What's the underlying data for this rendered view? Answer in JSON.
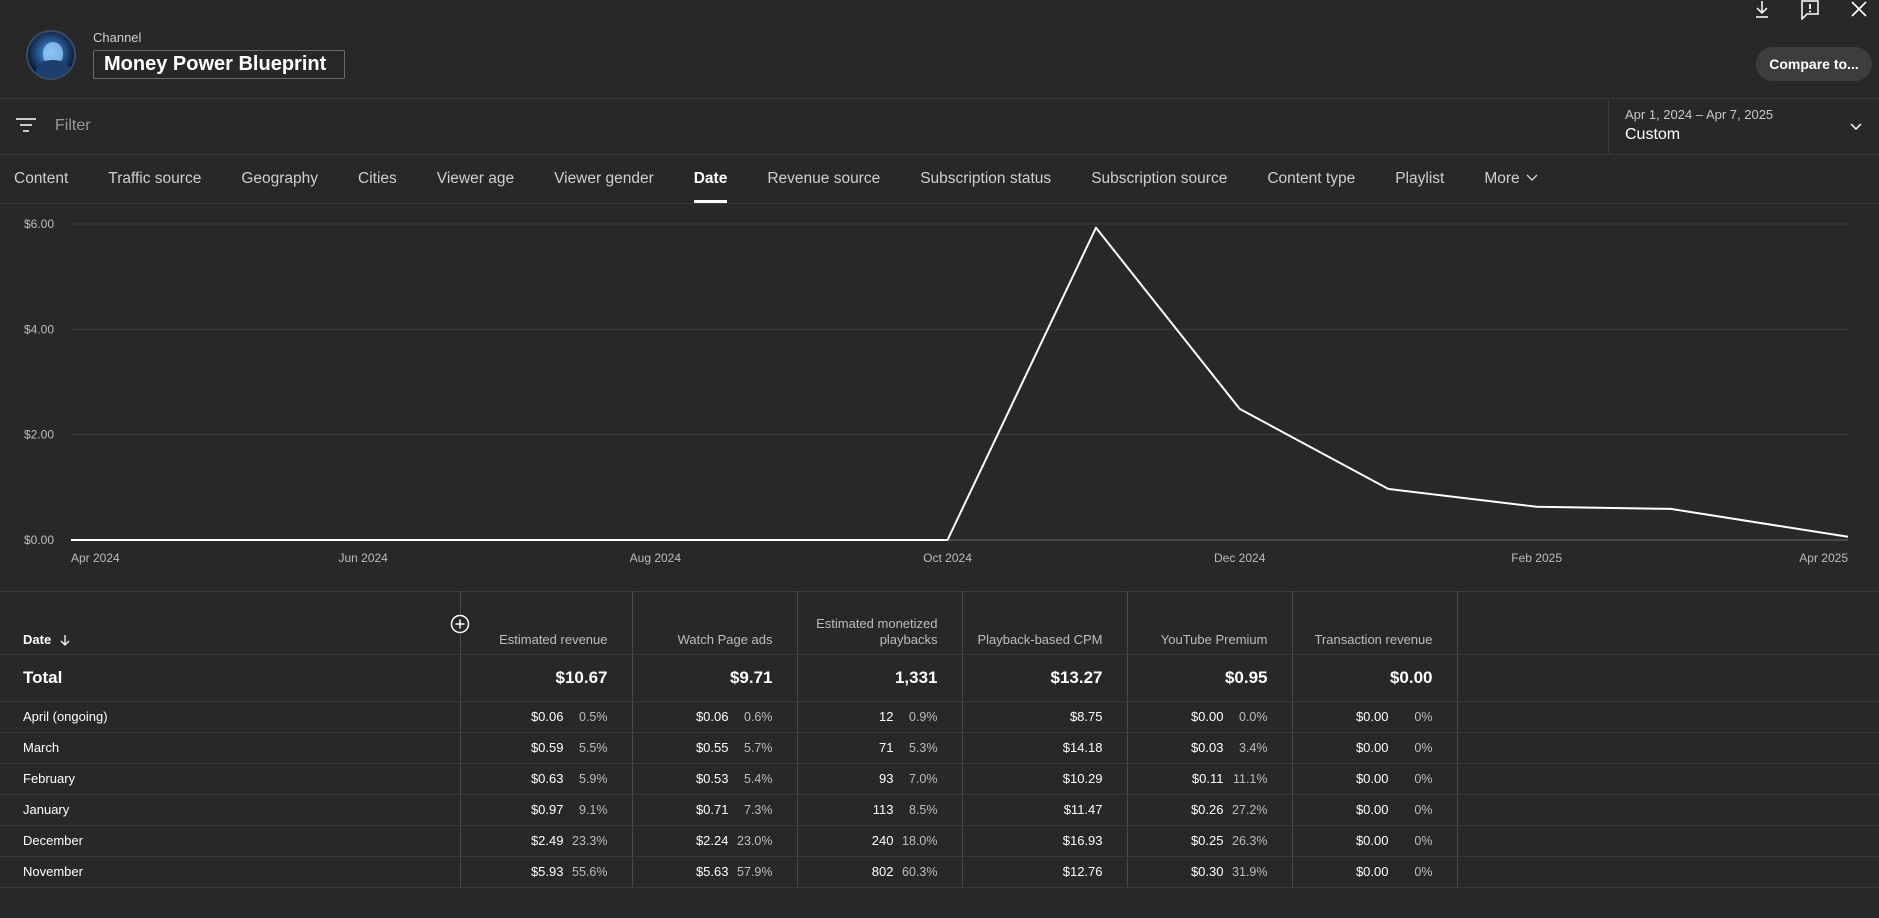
{
  "header": {
    "channel_label": "Channel",
    "channel_name": "Money Power Blueprint",
    "compare_label": "Compare to..."
  },
  "filter": {
    "placeholder": "Filter",
    "date_range": "Apr 1, 2024 – Apr 7, 2025",
    "date_preset": "Custom"
  },
  "tabs": [
    {
      "label": "Content"
    },
    {
      "label": "Traffic source"
    },
    {
      "label": "Geography"
    },
    {
      "label": "Cities"
    },
    {
      "label": "Viewer age"
    },
    {
      "label": "Viewer gender"
    },
    {
      "label": "Date",
      "active": true
    },
    {
      "label": "Revenue source"
    },
    {
      "label": "Subscription status"
    },
    {
      "label": "Subscription source"
    },
    {
      "label": "Content type"
    },
    {
      "label": "Playlist"
    },
    {
      "label": "More"
    }
  ],
  "chart_data": {
    "type": "line",
    "y_ticks": [
      "$6.00",
      "$4.00",
      "$2.00",
      "$0.00"
    ],
    "ylim": [
      0,
      6
    ],
    "x_ticks": [
      {
        "label": "Apr 2024",
        "date": "2024-04-01"
      },
      {
        "label": "Jun 2024",
        "date": "2024-06-01"
      },
      {
        "label": "Aug 2024",
        "date": "2024-08-01"
      },
      {
        "label": "Oct 2024",
        "date": "2024-10-01"
      },
      {
        "label": "Dec 2024",
        "date": "2024-12-01"
      },
      {
        "label": "Feb 2025",
        "date": "2025-02-01"
      },
      {
        "label": "Apr 2025",
        "date": "2025-04-01"
      }
    ],
    "xlim": [
      "2024-04-01",
      "2025-04-07"
    ],
    "series": [
      {
        "color": "#ffffff",
        "points": [
          {
            "x": "2024-04-01",
            "y": 0
          },
          {
            "x": "2024-05-01",
            "y": 0
          },
          {
            "x": "2024-06-01",
            "y": 0
          },
          {
            "x": "2024-07-01",
            "y": 0
          },
          {
            "x": "2024-08-01",
            "y": 0
          },
          {
            "x": "2024-09-01",
            "y": 0
          },
          {
            "x": "2024-10-01",
            "y": 0
          },
          {
            "x": "2024-11-01",
            "y": 5.93
          },
          {
            "x": "2024-12-01",
            "y": 2.49
          },
          {
            "x": "2025-01-01",
            "y": 0.97
          },
          {
            "x": "2025-02-01",
            "y": 0.63
          },
          {
            "x": "2025-03-01",
            "y": 0.59
          },
          {
            "x": "2025-04-07",
            "y": 0.06
          }
        ]
      }
    ]
  },
  "table": {
    "columns": [
      {
        "label": "Date"
      },
      {
        "label": "Estimated revenue"
      },
      {
        "label": "Watch Page ads"
      },
      {
        "label": "Estimated monetized playbacks"
      },
      {
        "label": "Playback-based CPM"
      },
      {
        "label": "YouTube Premium"
      },
      {
        "label": "Transaction revenue"
      }
    ],
    "total": {
      "label": "Total",
      "values": [
        "$10.67",
        "$9.71",
        "1,331",
        "$13.27",
        "$0.95",
        "$0.00"
      ]
    },
    "rows": [
      {
        "date": "April (ongoing)",
        "cells": [
          [
            "$0.06",
            "0.5%"
          ],
          [
            "$0.06",
            "0.6%"
          ],
          [
            "12",
            "0.9%"
          ],
          [
            "$8.75",
            ""
          ],
          [
            "$0.00",
            "0.0%"
          ],
          [
            "$0.00",
            "0%"
          ]
        ]
      },
      {
        "date": "March",
        "cells": [
          [
            "$0.59",
            "5.5%"
          ],
          [
            "$0.55",
            "5.7%"
          ],
          [
            "71",
            "5.3%"
          ],
          [
            "$14.18",
            ""
          ],
          [
            "$0.03",
            "3.4%"
          ],
          [
            "$0.00",
            "0%"
          ]
        ]
      },
      {
        "date": "February",
        "cells": [
          [
            "$0.63",
            "5.9%"
          ],
          [
            "$0.53",
            "5.4%"
          ],
          [
            "93",
            "7.0%"
          ],
          [
            "$10.29",
            ""
          ],
          [
            "$0.11",
            "11.1%"
          ],
          [
            "$0.00",
            "0%"
          ]
        ]
      },
      {
        "date": "January",
        "cells": [
          [
            "$0.97",
            "9.1%"
          ],
          [
            "$0.71",
            "7.3%"
          ],
          [
            "113",
            "8.5%"
          ],
          [
            "$11.47",
            ""
          ],
          [
            "$0.26",
            "27.2%"
          ],
          [
            "$0.00",
            "0%"
          ]
        ]
      },
      {
        "date": "December",
        "cells": [
          [
            "$2.49",
            "23.3%"
          ],
          [
            "$2.24",
            "23.0%"
          ],
          [
            "240",
            "18.0%"
          ],
          [
            "$16.93",
            ""
          ],
          [
            "$0.25",
            "26.3%"
          ],
          [
            "$0.00",
            "0%"
          ]
        ]
      },
      {
        "date": "November",
        "cells": [
          [
            "$5.93",
            "55.6%"
          ],
          [
            "$5.63",
            "57.9%"
          ],
          [
            "802",
            "60.3%"
          ],
          [
            "$12.76",
            ""
          ],
          [
            "$0.30",
            "31.9%"
          ],
          [
            "$0.00",
            "0%"
          ]
        ]
      }
    ]
  }
}
